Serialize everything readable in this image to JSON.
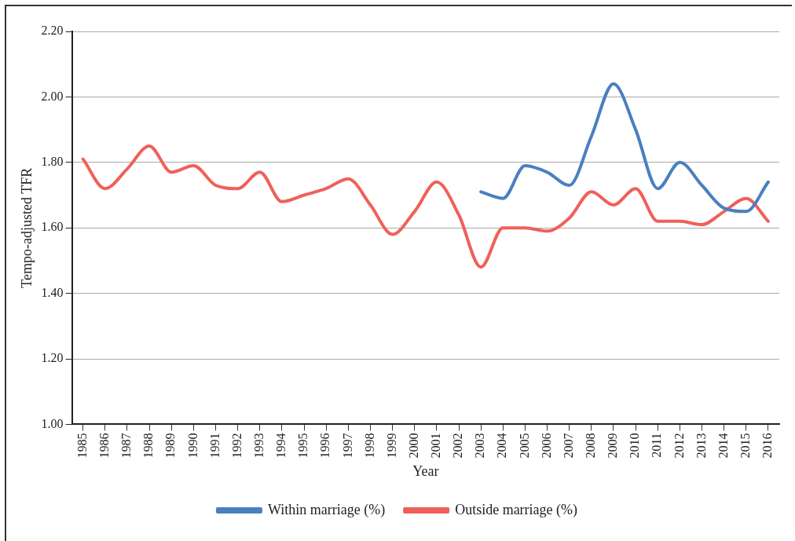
{
  "chart_data": {
    "type": "line",
    "xlabel": "Year",
    "ylabel": "Tempo-adjusted TFR",
    "categories": [
      "1985",
      "1986",
      "1987",
      "1988",
      "1989",
      "1990",
      "1991",
      "1992",
      "1993",
      "1994",
      "1995",
      "1996",
      "1997",
      "1998",
      "1999",
      "2000",
      "2001",
      "2002",
      "2003",
      "2004",
      "2005",
      "2006",
      "2007",
      "2008",
      "2009",
      "2010",
      "2011",
      "2012",
      "2013",
      "2014",
      "2015",
      "2016"
    ],
    "series": [
      {
        "name": "Within marriage (%)",
        "color": "#4a7fc1",
        "values": [
          null,
          null,
          null,
          null,
          null,
          null,
          null,
          null,
          null,
          null,
          null,
          null,
          null,
          null,
          null,
          null,
          null,
          null,
          1.71,
          1.69,
          1.79,
          1.77,
          1.73,
          1.88,
          2.04,
          1.9,
          1.72,
          1.8,
          1.73,
          1.66,
          1.65,
          1.74
        ]
      },
      {
        "name": "Outside marriage (%)",
        "color": "#f0605a",
        "values": [
          1.81,
          1.72,
          1.78,
          1.85,
          1.77,
          1.79,
          1.73,
          1.72,
          1.77,
          1.68,
          1.7,
          1.72,
          1.75,
          1.67,
          1.58,
          1.65,
          1.74,
          1.64,
          1.48,
          1.6,
          1.6,
          1.59,
          1.63,
          1.71,
          1.67,
          1.72,
          1.62,
          1.62,
          1.61,
          1.65,
          1.69,
          1.62
        ]
      }
    ],
    "ylim": [
      1.0,
      2.2
    ],
    "yticks": [
      {
        "value": 1.0,
        "label": "1.00"
      },
      {
        "value": 1.2,
        "label": "1.20"
      },
      {
        "value": 1.4,
        "label": "1.40"
      },
      {
        "value": 1.6,
        "label": "1.60"
      },
      {
        "value": 1.8,
        "label": "1.80"
      },
      {
        "value": 2.0,
        "label": "2.00"
      },
      {
        "value": 2.2,
        "label": "2.20"
      }
    ],
    "grid": "y",
    "legend": "bottom",
    "marker": "none",
    "line_style": "solid"
  }
}
